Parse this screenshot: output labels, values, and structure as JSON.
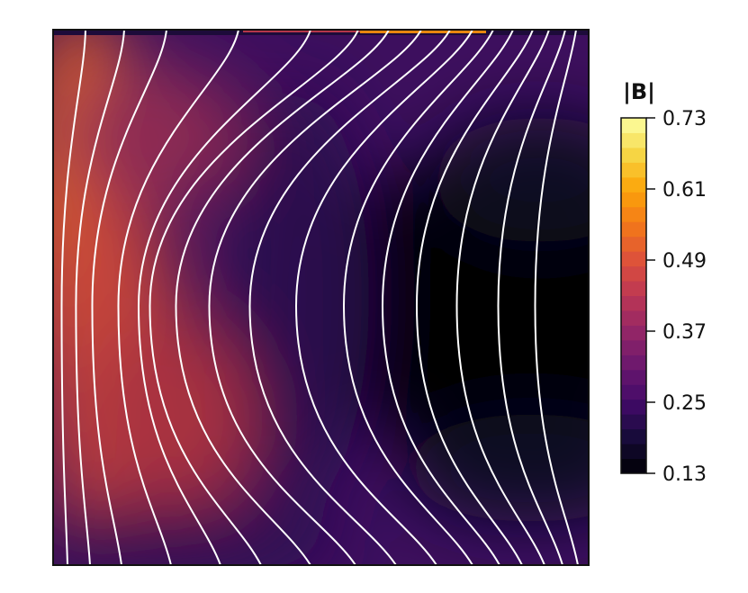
{
  "chart_data": {
    "type": "heatmap",
    "colormap": "inferno",
    "colorbar": {
      "title": "|B|",
      "ticks": [
        "0.73",
        "0.61",
        "0.49",
        "0.37",
        "0.25",
        "0.13"
      ],
      "range": [
        0.13,
        0.73
      ],
      "levels": 24
    },
    "field_description": "magnitude with contour field lines",
    "field_line_count": 16,
    "colors": {
      "field_lines": "#ffffff",
      "frame": "#111111"
    }
  }
}
